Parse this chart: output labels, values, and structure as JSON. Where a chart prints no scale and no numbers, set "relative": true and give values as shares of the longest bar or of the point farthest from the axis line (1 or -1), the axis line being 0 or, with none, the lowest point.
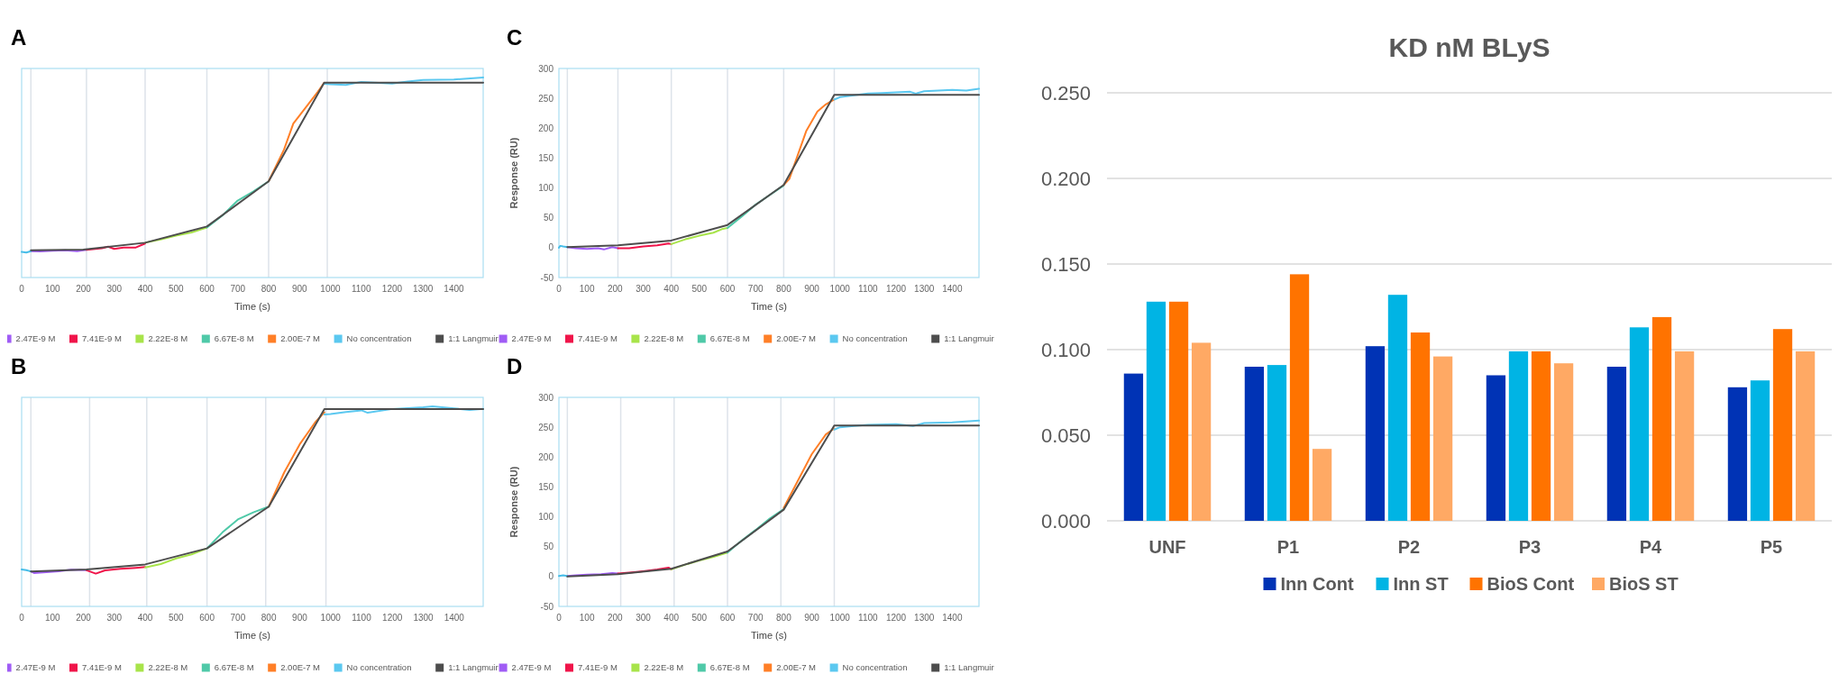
{
  "chart_data": [
    {
      "type": "line",
      "title": "A",
      "xlabel": "Time (s)",
      "relative": true,
      "tick_labels": "x",
      "legend": "bottom",
      "xlim": [
        0,
        1495
      ],
      "xticks": [
        0,
        100,
        200,
        300,
        400,
        500,
        600,
        700,
        800,
        900,
        1000,
        1100,
        1200,
        1300,
        1400
      ],
      "ref_lines": [
        {
          "axis": "x",
          "value": 30,
          "color": "#dde3ea"
        },
        {
          "axis": "x",
          "value": 210,
          "color": "#dde3ea"
        },
        {
          "axis": "x",
          "value": 400,
          "color": "#dde3ea"
        },
        {
          "axis": "x",
          "value": 600,
          "color": "#dde3ea"
        },
        {
          "axis": "x",
          "value": 800,
          "color": "#dde3ea"
        },
        {
          "axis": "x",
          "value": 990,
          "color": "#dde3ea"
        }
      ],
      "series": [
        {
          "name": "2.47E-9 M",
          "color": "#a05cf5",
          "x": [
            30,
            60,
            100,
            140,
            180,
            210
          ],
          "values": [
            0.132,
            0.131,
            0.134,
            0.136,
            0.132,
            0.139
          ]
        },
        {
          "name": "7.41E-9 M",
          "color": "#f0144a",
          "x": [
            210,
            260,
            280,
            300,
            330,
            370,
            400
          ],
          "values": [
            0.139,
            0.146,
            0.154,
            0.143,
            0.15,
            0.15,
            0.17
          ]
        },
        {
          "name": "2.22E-8 M",
          "color": "#a8e44a",
          "x": [
            400,
            450,
            500,
            550,
            600
          ],
          "values": [
            0.174,
            0.19,
            0.209,
            0.225,
            0.25
          ]
        },
        {
          "name": "6.67E-8 M",
          "color": "#4fc9a8",
          "x": [
            600,
            650,
            700,
            750,
            800
          ],
          "values": [
            0.25,
            0.31,
            0.385,
            0.43,
            0.481
          ]
        },
        {
          "name": "2.00E-7 M",
          "color": "#ff7f27",
          "x": [
            800,
            850,
            880,
            920,
            960,
            980
          ],
          "values": [
            0.481,
            0.64,
            0.77,
            0.85,
            0.93,
            0.974
          ]
        },
        {
          "color": "#46bde8",
          "x": [
            0,
            15,
            30
          ],
          "values": [
            0.128,
            0.125,
            0.132
          ]
        },
        {
          "name": "No concentration",
          "color": "#5bc8f0",
          "x": [
            980,
            1000,
            1050,
            1100,
            1200,
            1250,
            1300,
            1400,
            1495
          ],
          "values": [
            0.968,
            0.966,
            0.963,
            0.978,
            0.97,
            0.98,
            0.988,
            0.99,
            1
          ]
        },
        {
          "name": "1:1 Langmuir",
          "color": "#4d4d4d",
          "x": [
            30,
            200,
            400,
            600,
            800,
            980,
            1495
          ],
          "values": [
            0.136,
            0.14,
            0.174,
            0.255,
            0.481,
            0.974,
            0.974
          ]
        }
      ]
    },
    {
      "type": "line",
      "title": "C",
      "xlabel": "Time (s)",
      "ylabel": "Response (RU)",
      "legend": "bottom",
      "xlim": [
        0,
        1495
      ],
      "xticks": [
        0,
        100,
        200,
        300,
        400,
        500,
        600,
        700,
        800,
        900,
        1000,
        1100,
        1200,
        1300,
        1400
      ],
      "ylim": [
        -50,
        300
      ],
      "yticks": [
        -50,
        0,
        50,
        100,
        150,
        200,
        250,
        300
      ],
      "ref_lines": [
        {
          "axis": "x",
          "value": 30,
          "color": "#dde3ea"
        },
        {
          "axis": "x",
          "value": 210,
          "color": "#dde3ea"
        },
        {
          "axis": "x",
          "value": 400,
          "color": "#dde3ea"
        },
        {
          "axis": "x",
          "value": 600,
          "color": "#dde3ea"
        },
        {
          "axis": "x",
          "value": 800,
          "color": "#dde3ea"
        },
        {
          "axis": "x",
          "value": 980,
          "color": "#dde3ea"
        }
      ],
      "series": [
        {
          "name": "2.47E-9 M",
          "color": "#a05cf5",
          "x": [
            30,
            60,
            100,
            140,
            160,
            190,
            210
          ],
          "values": [
            1,
            -1,
            -2,
            -1,
            -3,
            1,
            -1
          ]
        },
        {
          "name": "7.41E-9 M",
          "color": "#f0144a",
          "x": [
            210,
            250,
            300,
            350,
            390,
            400
          ],
          "values": [
            -1,
            -1,
            2,
            4,
            7,
            6
          ]
        },
        {
          "name": "2.22E-8 M",
          "color": "#a8e44a",
          "x": [
            400,
            450,
            500,
            550,
            580,
            600
          ],
          "values": [
            6,
            14,
            20,
            25,
            31,
            33
          ]
        },
        {
          "name": "6.67E-8 M",
          "color": "#4fc9a8",
          "x": [
            600,
            650,
            700,
            750,
            800
          ],
          "values": [
            33,
            52,
            72,
            88,
            104
          ]
        },
        {
          "name": "2.00E-7 M",
          "color": "#ff7f27",
          "x": [
            800,
            820,
            850,
            880,
            920,
            950,
            980
          ],
          "values": [
            105,
            115,
            155,
            195,
            228,
            240,
            248
          ]
        },
        {
          "color": "#46bde8",
          "x": [
            0,
            5,
            15,
            30
          ],
          "values": [
            0,
            3,
            2,
            1
          ]
        },
        {
          "name": "No concentration",
          "color": "#5bc8f0",
          "x": [
            980,
            1000,
            1050,
            1100,
            1150,
            1200,
            1250,
            1270,
            1300,
            1350,
            1400,
            1450,
            1495
          ],
          "values": [
            248,
            252,
            255,
            258,
            259,
            260,
            261,
            258,
            262,
            263,
            264,
            263,
            266
          ]
        },
        {
          "name": "1:1 Langmuir",
          "color": "#4d4d4d",
          "x": [
            30,
            210,
            400,
            600,
            800,
            980,
            1495
          ],
          "values": [
            1,
            4,
            12,
            38,
            105,
            256,
            256
          ]
        }
      ]
    },
    {
      "type": "line",
      "title": "B",
      "xlabel": "Time (s)",
      "relative": true,
      "tick_labels": "x",
      "legend": "bottom",
      "xlim": [
        0,
        1494
      ],
      "xticks": [
        0,
        100,
        200,
        300,
        400,
        500,
        600,
        700,
        800,
        900,
        1000,
        1100,
        1200,
        1300,
        1400
      ],
      "ref_lines": [
        {
          "axis": "x",
          "value": 30,
          "color": "#dde3ea"
        },
        {
          "axis": "x",
          "value": 220,
          "color": "#dde3ea"
        },
        {
          "axis": "x",
          "value": 405,
          "color": "#dde3ea"
        },
        {
          "axis": "x",
          "value": 600,
          "color": "#dde3ea"
        },
        {
          "axis": "x",
          "value": 790,
          "color": "#dde3ea"
        },
        {
          "axis": "x",
          "value": 985,
          "color": "#dde3ea"
        }
      ],
      "series": [
        {
          "name": "2.47E-9 M",
          "color": "#a05cf5",
          "x": [
            30,
            40,
            70,
            120,
            160,
            210
          ],
          "values": [
            0.175,
            0.167,
            0.17,
            0.176,
            0.184,
            0.181
          ]
        },
        {
          "name": "7.41E-9 M",
          "color": "#f0144a",
          "x": [
            210,
            240,
            270,
            320,
            370,
            400
          ],
          "values": [
            0.181,
            0.164,
            0.18,
            0.188,
            0.193,
            0.197
          ]
        },
        {
          "name": "2.22E-8 M",
          "color": "#a8e44a",
          "x": [
            400,
            450,
            500,
            550,
            600
          ],
          "values": [
            0.195,
            0.212,
            0.24,
            0.26,
            0.29
          ]
        },
        {
          "name": "6.67E-8 M",
          "color": "#4fc9a8",
          "x": [
            600,
            650,
            700,
            750,
            800
          ],
          "values": [
            0.29,
            0.37,
            0.435,
            0.47,
            0.499
          ]
        },
        {
          "name": "2.00E-7 M",
          "color": "#ff7f27",
          "x": [
            800,
            850,
            900,
            950,
            980
          ],
          "values": [
            0.499,
            0.67,
            0.81,
            0.92,
            0.97
          ]
        },
        {
          "color": "#46bde8",
          "x": [
            0,
            15,
            30
          ],
          "values": [
            0.185,
            0.181,
            0.175
          ]
        },
        {
          "name": "No concentration",
          "color": "#5bc8f0",
          "x": [
            980,
            1000,
            1050,
            1100,
            1120,
            1200,
            1300,
            1330,
            1400,
            1450,
            1494
          ],
          "values": [
            0.96,
            0.962,
            0.972,
            0.98,
            0.968,
            0.987,
            0.995,
            1,
            0.99,
            0.982,
            0.988
          ]
        },
        {
          "name": "1:1 Langmuir",
          "color": "#4d4d4d",
          "x": [
            30,
            210,
            400,
            600,
            800,
            980,
            1494
          ],
          "values": [
            0.175,
            0.185,
            0.21,
            0.29,
            0.499,
            0.986,
            0.986
          ]
        }
      ]
    },
    {
      "type": "line",
      "title": "D",
      "xlabel": "Time (s)",
      "ylabel": "Response (RU)",
      "legend": "bottom",
      "xlim": [
        0,
        1495
      ],
      "xticks": [
        0,
        100,
        200,
        300,
        400,
        500,
        600,
        700,
        800,
        900,
        1000,
        1100,
        1200,
        1300,
        1400
      ],
      "ylim": [
        -50,
        300
      ],
      "yticks": [
        -50,
        0,
        50,
        100,
        150,
        200,
        250,
        300
      ],
      "ref_lines": [
        {
          "axis": "x",
          "value": 30,
          "color": "#dde3ea"
        },
        {
          "axis": "x",
          "value": 220,
          "color": "#dde3ea"
        },
        {
          "axis": "x",
          "value": 410,
          "color": "#dde3ea"
        },
        {
          "axis": "x",
          "value": 600,
          "color": "#dde3ea"
        },
        {
          "axis": "x",
          "value": 790,
          "color": "#dde3ea"
        },
        {
          "axis": "x",
          "value": 980,
          "color": "#dde3ea"
        }
      ],
      "series": [
        {
          "name": "2.47E-9 M",
          "color": "#a05cf5",
          "x": [
            30,
            60,
            100,
            150,
            190,
            210
          ],
          "values": [
            1,
            2,
            3,
            4,
            6,
            5
          ]
        },
        {
          "name": "7.41E-9 M",
          "color": "#f0144a",
          "x": [
            210,
            260,
            300,
            350,
            390,
            400
          ],
          "values": [
            5,
            7,
            9,
            12,
            15,
            12
          ]
        },
        {
          "name": "2.22E-8 M",
          "color": "#a8e44a",
          "x": [
            400,
            450,
            500,
            550,
            600
          ],
          "values": [
            12,
            20,
            27,
            33,
            40
          ]
        },
        {
          "name": "6.67E-8 M",
          "color": "#4fc9a8",
          "x": [
            600,
            650,
            700,
            750,
            800
          ],
          "values": [
            40,
            60,
            78,
            97,
            113
          ]
        },
        {
          "name": "2.00E-7 M",
          "color": "#ff7f27",
          "x": [
            800,
            850,
            900,
            950,
            980
          ],
          "values": [
            115,
            160,
            205,
            238,
            248
          ]
        },
        {
          "color": "#46bde8",
          "x": [
            0,
            15,
            30
          ],
          "values": [
            1,
            2,
            1
          ]
        },
        {
          "name": "No concentration",
          "color": "#5bc8f0",
          "x": [
            980,
            1000,
            1050,
            1100,
            1200,
            1260,
            1300,
            1400,
            1495
          ],
          "values": [
            246,
            250,
            252,
            254,
            255,
            252,
            257,
            258,
            261
          ]
        },
        {
          "name": "1:1 Langmuir",
          "color": "#4d4d4d",
          "x": [
            30,
            210,
            400,
            600,
            800,
            980,
            1495
          ],
          "values": [
            0,
            4,
            13,
            42,
            112,
            253,
            253
          ]
        }
      ]
    },
    {
      "type": "bar",
      "title": "KD nM BLyS",
      "categories": [
        "UNF",
        "P1",
        "P2",
        "P3",
        "P4",
        "P5"
      ],
      "ylim": [
        0,
        0.25
      ],
      "yticks": [
        {
          "value": 0,
          "label": "0.000"
        },
        {
          "value": 0.05,
          "label": "0.050"
        },
        {
          "value": 0.1,
          "label": "0.100"
        },
        {
          "value": 0.15,
          "label": "0.150"
        },
        {
          "value": 0.2,
          "label": "0.200"
        },
        {
          "value": 0.25,
          "label": "0.250"
        }
      ],
      "grid": "y",
      "legend": "bottom",
      "series": [
        {
          "name": "Inn Cont",
          "color": "#0033b5",
          "values": [
            0.086,
            0.09,
            0.102,
            0.085,
            0.09,
            0.078
          ]
        },
        {
          "name": "Inn ST",
          "color": "#00b4e4",
          "values": [
            0.128,
            0.091,
            0.132,
            0.099,
            0.113,
            0.082
          ]
        },
        {
          "name": "BioS Cont",
          "color": "#ff7300",
          "values": [
            0.128,
            0.144,
            0.11,
            0.099,
            0.119,
            0.112
          ]
        },
        {
          "name": "BioS ST",
          "color": "#ffa964",
          "values": [
            0.104,
            0.042,
            0.096,
            0.092,
            0.099,
            0.099
          ]
        }
      ]
    }
  ]
}
